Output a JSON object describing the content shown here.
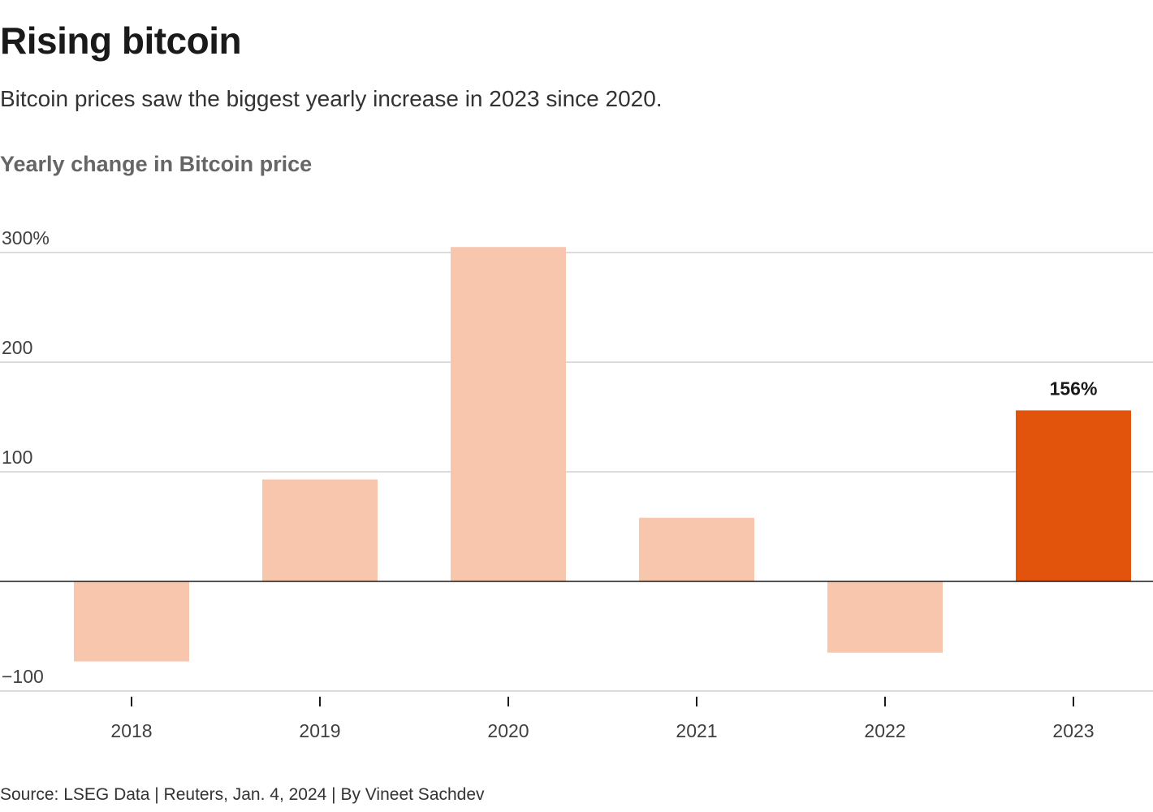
{
  "header": {
    "title": "Rising bitcoin",
    "subtitle": "Bitcoin prices saw the biggest yearly increase in 2023 since 2020."
  },
  "chart_data": {
    "type": "bar",
    "title": "Yearly change in Bitcoin price",
    "categories": [
      "2018",
      "2019",
      "2020",
      "2021",
      "2022",
      "2023"
    ],
    "values": [
      -73,
      93,
      305,
      58,
      -65,
      156
    ],
    "ylim": [
      -100,
      300
    ],
    "yticks": [
      300,
      200,
      100,
      -100
    ],
    "ytick_labels": [
      "300%",
      "200",
      "100",
      "−100"
    ],
    "grid": true,
    "highlight": {
      "category": "2023",
      "label": "156%"
    },
    "colors": {
      "bar": "#f7c6ad",
      "highlight": "#e2540b",
      "grid": "#c8c8c8",
      "zero_line": "#1a1a1a"
    }
  },
  "footer": {
    "source": "Source: LSEG Data | Reuters, Jan. 4, 2024 | By Vineet Sachdev"
  }
}
